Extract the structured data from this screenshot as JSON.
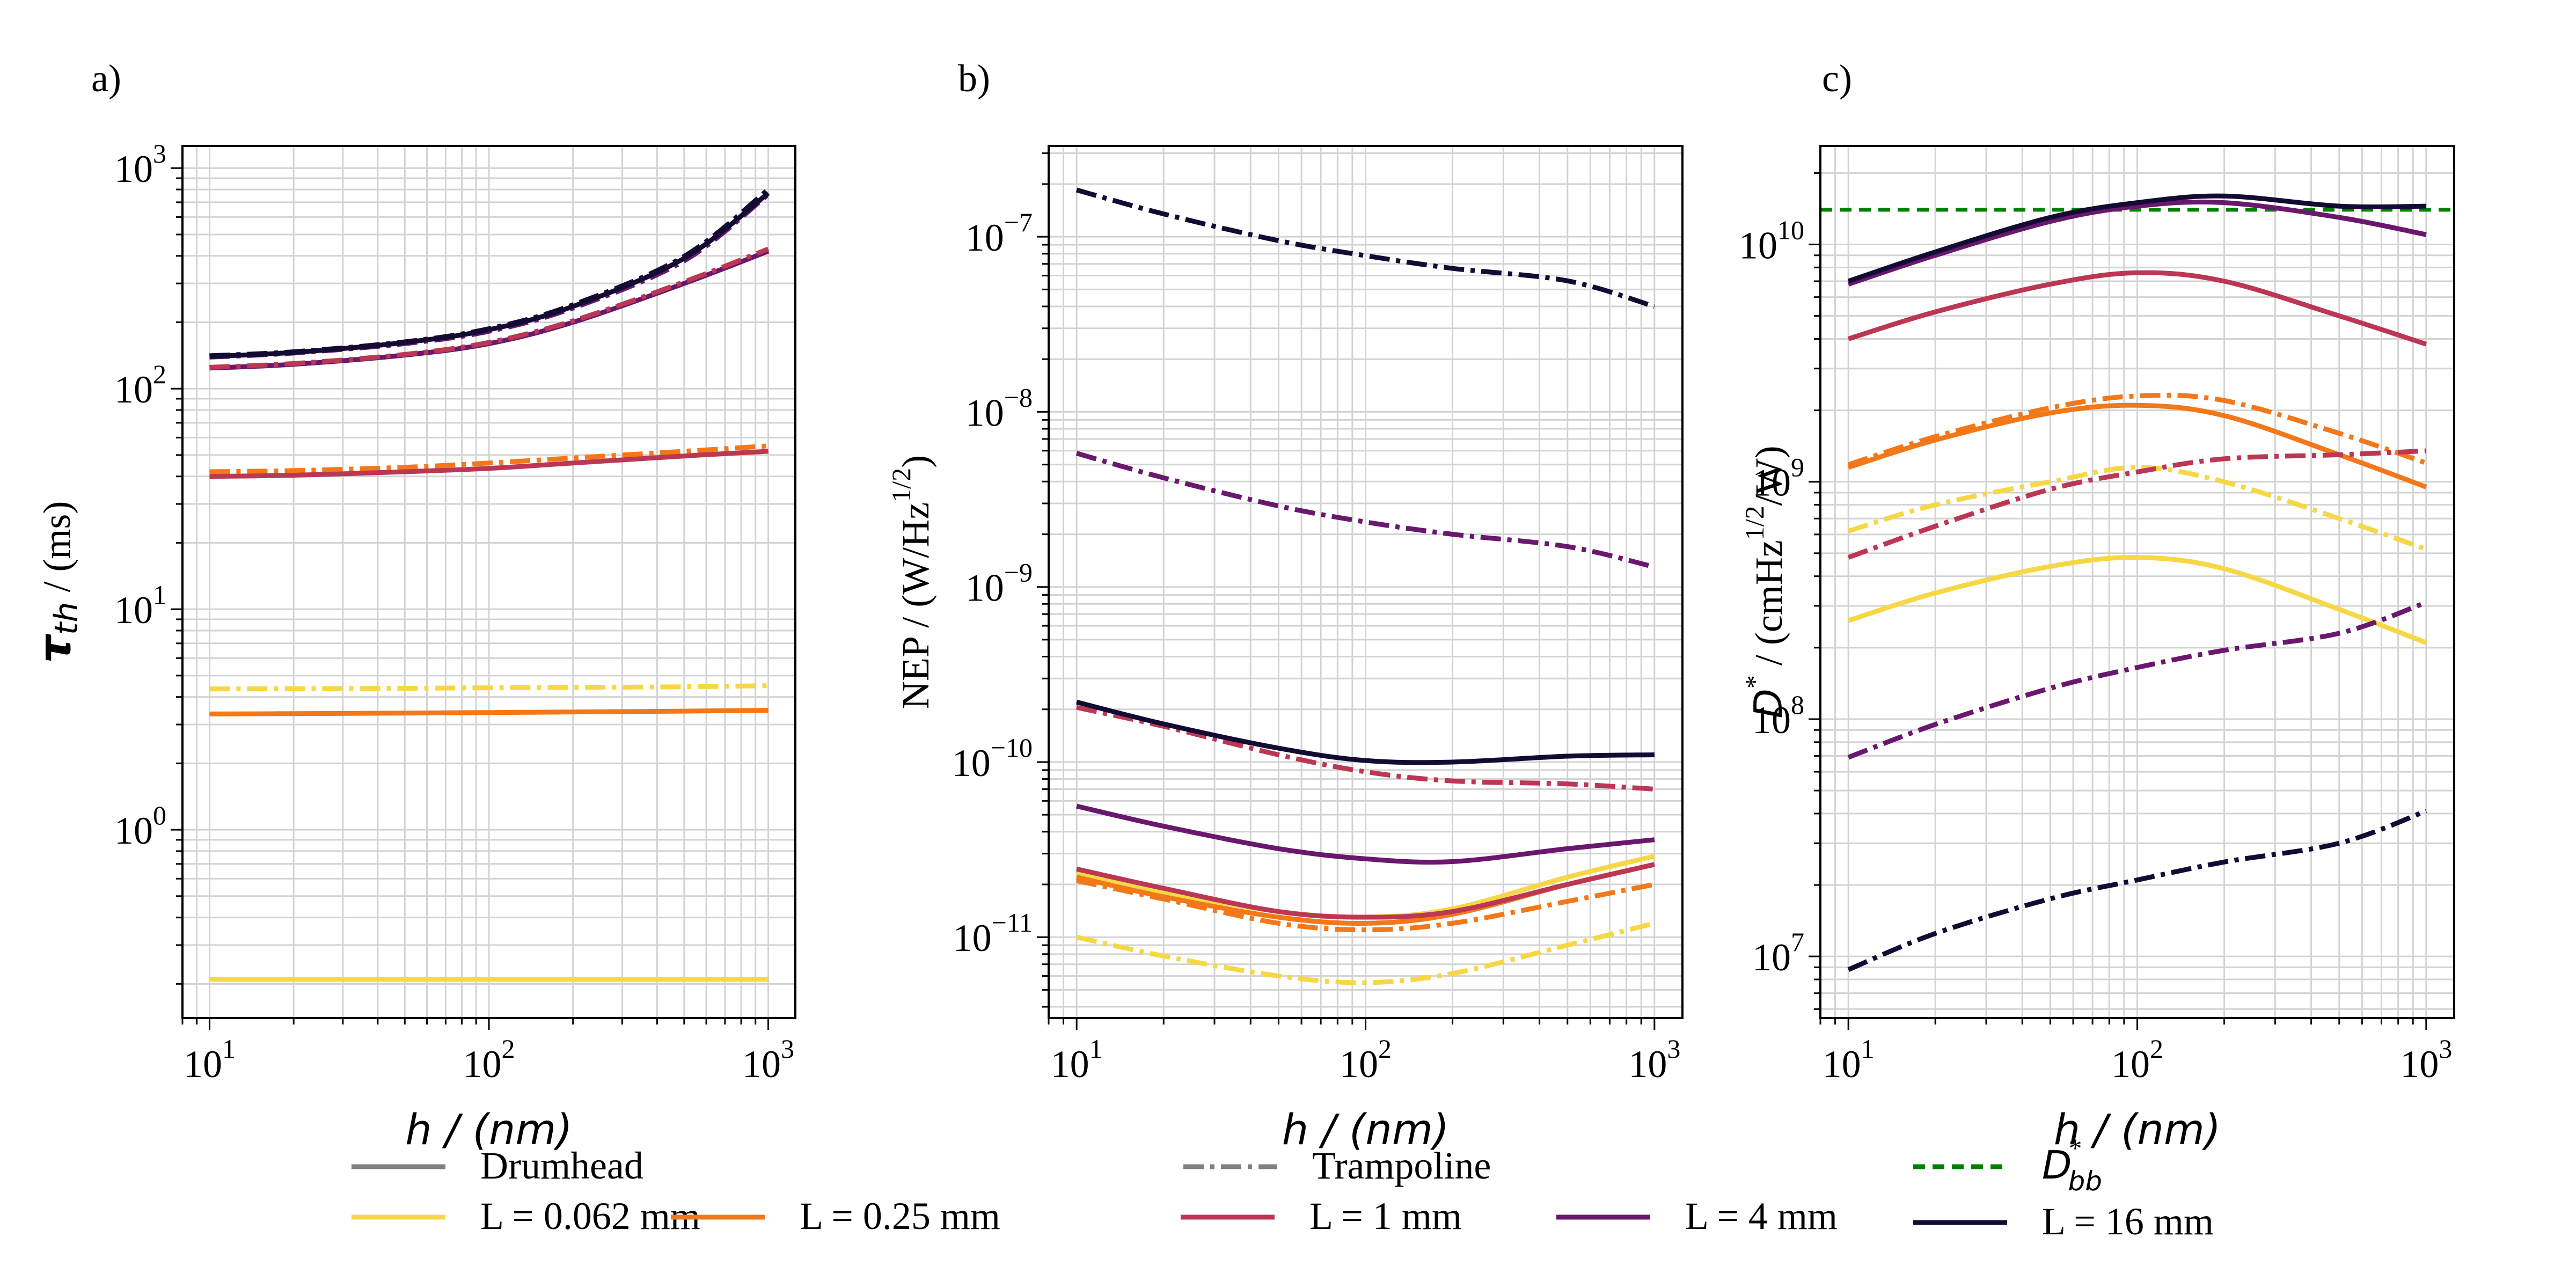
{
  "figure": {
    "legend": {
      "style_entries": [
        {
          "label": "Drumhead",
          "style": "solid",
          "color": "#808080"
        },
        {
          "label": "Trampoline",
          "style": "dashdot",
          "color": "#808080"
        },
        {
          "label": "D*_bb",
          "label_main": "D",
          "label_sup": "*",
          "label_sub": "bb",
          "style": "dashed",
          "color": "#008000"
        }
      ],
      "length_entries": [
        {
          "label": "L = 0.062 mm",
          "color": "#f6d746"
        },
        {
          "label": "L = 0.25 mm",
          "color": "#f37819"
        },
        {
          "label": "L = 1 mm",
          "color": "#bc3754"
        },
        {
          "label": "L = 4 mm",
          "color": "#6a176e"
        },
        {
          "label": "L = 16 mm",
          "color": "#140b34"
        }
      ]
    }
  },
  "chart_data": [
    {
      "panel": "a)",
      "type": "line",
      "xscale": "log",
      "yscale": "log",
      "xlabel": "h / (nm)",
      "ylabel_main": "τ",
      "ylabel_sub": "th",
      "ylabel_rest": " / (ms)",
      "xlim": [
        8,
        1250
      ],
      "ylim": [
        0.14,
        1260
      ],
      "xticks": [
        {
          "v": 10,
          "base": "10",
          "exp": "1"
        },
        {
          "v": 100,
          "base": "10",
          "exp": "2"
        },
        {
          "v": 1000,
          "base": "10",
          "exp": "3"
        }
      ],
      "yticks": [
        {
          "v": 1,
          "base": "10",
          "exp": "0"
        },
        {
          "v": 10,
          "base": "10",
          "exp": "1"
        },
        {
          "v": 100,
          "base": "10",
          "exp": "2"
        },
        {
          "v": 1000,
          "base": "10",
          "exp": "3"
        }
      ],
      "grid": true,
      "x": [
        10,
        20,
        50,
        100,
        200,
        500,
        1000
      ],
      "series": [
        {
          "name": "L = 0.062 mm, Drumhead",
          "color": "#f6d746",
          "style": "solid",
          "values": [
            0.21,
            0.21,
            0.21,
            0.21,
            0.21,
            0.21,
            0.21
          ]
        },
        {
          "name": "L = 0.062 mm, Trampoline",
          "color": "#f6d746",
          "style": "dashdot",
          "values": [
            4.35,
            4.36,
            4.38,
            4.4,
            4.42,
            4.45,
            4.5
          ]
        },
        {
          "name": "L = 0.25 mm, Drumhead",
          "color": "#f37819",
          "style": "solid",
          "values": [
            3.35,
            3.36,
            3.38,
            3.4,
            3.42,
            3.45,
            3.48
          ]
        },
        {
          "name": "L = 0.25 mm, Trampoline",
          "color": "#f37819",
          "style": "dashdot",
          "values": [
            42,
            42.5,
            44,
            46,
            48.5,
            52,
            55
          ]
        },
        {
          "name": "L = 1 mm, Drumhead",
          "color": "#bc3754",
          "style": "solid",
          "values": [
            40,
            40.5,
            42,
            43.5,
            46,
            49.5,
            52
          ]
        },
        {
          "name": "L = 4 mm, Drumhead",
          "color": "#6a176e",
          "style": "solid",
          "values": [
            124,
            129,
            142,
            160,
            200,
            300,
            420
          ]
        },
        {
          "name": "L = 1 mm, Trampoline",
          "color": "#bc3754",
          "style": "dashdot",
          "values": [
            125,
            130,
            143,
            162,
            203,
            305,
            430
          ]
        },
        {
          "name": "L = 4 mm, Trampoline",
          "color": "#6a176e",
          "style": "dashdot",
          "values": [
            139,
            145,
            160,
            182,
            232,
            380,
            760
          ]
        },
        {
          "name": "L = 16 mm, Drumhead",
          "color": "#140b34",
          "style": "solid",
          "values": [
            140,
            146,
            162,
            185,
            236,
            390,
            770
          ]
        },
        {
          "name": "L = 16 mm, Trampoline",
          "color": "#140b34",
          "style": "dashdot",
          "values": [
            141,
            147,
            163,
            187,
            240,
            398,
            800
          ]
        }
      ]
    },
    {
      "panel": "b)",
      "type": "line",
      "xscale": "log",
      "yscale": "log",
      "xlabel": "h / (nm)",
      "ylabel_main": "NEP / (W/Hz",
      "ylabel_sup": "1/2",
      "ylabel_rest": ")",
      "xlim": [
        8,
        1250
      ],
      "ylim": [
        3.45e-12,
        3.3e-07
      ],
      "xticks": [
        {
          "v": 10,
          "base": "10",
          "exp": "1"
        },
        {
          "v": 100,
          "base": "10",
          "exp": "2"
        },
        {
          "v": 1000,
          "base": "10",
          "exp": "3"
        }
      ],
      "yticks": [
        {
          "v": 1e-11,
          "base": "10",
          "exp": "−11"
        },
        {
          "v": 1e-10,
          "base": "10",
          "exp": "−10"
        },
        {
          "v": 1e-09,
          "base": "10",
          "exp": "−9"
        },
        {
          "v": 1e-08,
          "base": "10",
          "exp": "−8"
        },
        {
          "v": 1e-07,
          "base": "10",
          "exp": "−7"
        }
      ],
      "grid": true,
      "x": [
        10,
        20,
        50,
        100,
        200,
        500,
        1000
      ],
      "series": [
        {
          "name": "L = 0.062 mm, Drumhead",
          "color": "#f6d746",
          "style": "solid",
          "values": [
            2.3e-11,
            1.8e-11,
            1.4e-11,
            1.3e-11,
            1.45e-11,
            2.2e-11,
            2.9e-11
          ]
        },
        {
          "name": "L = 0.062 mm, Trampoline",
          "color": "#f6d746",
          "style": "dashdot",
          "values": [
            1e-11,
            7.8e-12,
            6e-12,
            5.5e-12,
            6.2e-12,
            9e-12,
            1.2e-11
          ]
        },
        {
          "name": "L = 0.25 mm, Drumhead",
          "color": "#f37819",
          "style": "solid",
          "values": [
            2.2e-11,
            1.7e-11,
            1.3e-11,
            1.2e-11,
            1.35e-11,
            2e-11,
            2.6e-11
          ]
        },
        {
          "name": "L = 0.25 mm, Trampoline",
          "color": "#f37819",
          "style": "dashdot",
          "values": [
            2.1e-11,
            1.65e-11,
            1.2e-11,
            1.1e-11,
            1.2e-11,
            1.6e-11,
            2e-11
          ]
        },
        {
          "name": "L = 1 mm, Drumhead",
          "color": "#bc3754",
          "style": "solid",
          "values": [
            2.45e-11,
            1.9e-11,
            1.4e-11,
            1.3e-11,
            1.4e-11,
            2e-11,
            2.6e-11
          ]
        },
        {
          "name": "L = 1 mm, Trampoline",
          "color": "#bc3754",
          "style": "dashdot",
          "values": [
            2.05e-10,
            1.6e-10,
            1.1e-10,
            8.8e-11,
            7.8e-11,
            7.5e-11,
            7e-11
          ]
        },
        {
          "name": "L = 4 mm, Drumhead",
          "color": "#6a176e",
          "style": "solid",
          "values": [
            5.6e-11,
            4.3e-11,
            3.2e-11,
            2.8e-11,
            2.7e-11,
            3.2e-11,
            3.6e-11
          ]
        },
        {
          "name": "L = 4 mm, Trampoline",
          "color": "#6a176e",
          "style": "dashdot",
          "values": [
            5.8e-09,
            4.2e-09,
            2.9e-09,
            2.35e-09,
            2e-09,
            1.7e-09,
            1.3e-09
          ]
        },
        {
          "name": "L = 16 mm, Drumhead",
          "color": "#140b34",
          "style": "solid",
          "values": [
            2.2e-10,
            1.65e-10,
            1.2e-10,
            1.02e-10,
            1e-10,
            1.08e-10,
            1.1e-10
          ]
        },
        {
          "name": "L = 16 mm, Trampoline",
          "color": "#140b34",
          "style": "dashdot",
          "values": [
            1.85e-07,
            1.35e-07,
            9.5e-08,
            7.8e-08,
            6.6e-08,
            5.6e-08,
            4e-08
          ]
        }
      ]
    },
    {
      "panel": "c)",
      "type": "line",
      "xscale": "log",
      "yscale": "log",
      "xlabel": "h / (nm)",
      "ylabel_main": "D",
      "ylabel_sup": "*",
      "ylabel_rest": " / (cmHz",
      "ylabel_sup2": "1/2",
      "ylabel_rest2": "/W)",
      "xlim": [
        8,
        1250
      ],
      "ylim": [
        5500000.0,
        26000000000.0
      ],
      "xticks": [
        {
          "v": 10,
          "base": "10",
          "exp": "1"
        },
        {
          "v": 100,
          "base": "10",
          "exp": "2"
        },
        {
          "v": 1000,
          "base": "10",
          "exp": "3"
        }
      ],
      "yticks": [
        {
          "v": 10000000.0,
          "base": "10",
          "exp": "7"
        },
        {
          "v": 100000000.0,
          "base": "10",
          "exp": "8"
        },
        {
          "v": 1000000000.0,
          "base": "10",
          "exp": "9"
        },
        {
          "v": 10000000000.0,
          "base": "10",
          "exp": "10"
        }
      ],
      "grid": true,
      "hline": {
        "name": "D*_bb",
        "value": 14000000000.0,
        "color": "#008000",
        "style": "dashed"
      },
      "x": [
        10,
        20,
        50,
        100,
        200,
        500,
        1000
      ],
      "series": [
        {
          "name": "L = 0.062 mm, Drumhead",
          "color": "#f6d746",
          "style": "solid",
          "values": [
            260000000.0,
            340000000.0,
            440000000.0,
            480000000.0,
            430000000.0,
            290000000.0,
            210000000.0
          ]
        },
        {
          "name": "L = 0.062 mm, Trampoline",
          "color": "#f6d746",
          "style": "dashdot",
          "values": [
            620000000.0,
            800000000.0,
            1000000000.0,
            1150000000.0,
            1000000000.0,
            700000000.0,
            520000000.0
          ]
        },
        {
          "name": "L = 0.25 mm, Drumhead",
          "color": "#f37819",
          "style": "solid",
          "values": [
            1150000000.0,
            1500000000.0,
            1950000000.0,
            2100000000.0,
            1900000000.0,
            1300000000.0,
            950000000.0
          ]
        },
        {
          "name": "L = 0.25 mm, Trampoline",
          "color": "#f37819",
          "style": "dashdot",
          "values": [
            1180000000.0,
            1550000000.0,
            2050000000.0,
            2300000000.0,
            2200000000.0,
            1600000000.0,
            1200000000.0
          ]
        },
        {
          "name": "L = 1 mm, Drumhead",
          "color": "#bc3754",
          "style": "solid",
          "values": [
            4000000000.0,
            5200000000.0,
            6800000000.0,
            7600000000.0,
            7000000000.0,
            5000000000.0,
            3800000000.0
          ]
        },
        {
          "name": "L = 1 mm, Trampoline",
          "color": "#bc3754",
          "style": "dashdot",
          "values": [
            480000000.0,
            650000000.0,
            930000000.0,
            1100000000.0,
            1250000000.0,
            1300000000.0,
            1350000000.0
          ]
        },
        {
          "name": "L = 4 mm, Drumhead",
          "color": "#6a176e",
          "style": "solid",
          "values": [
            6800000000.0,
            9000000000.0,
            12500000000.0,
            14500000000.0,
            15000000000.0,
            13000000000.0,
            11000000000.0
          ]
        },
        {
          "name": "L = 4 mm, Trampoline",
          "color": "#6a176e",
          "style": "dashdot",
          "values": [
            69000000.0,
            95000000.0,
            135000000.0,
            165000000.0,
            195000000.0,
            230000000.0,
            310000000.0
          ]
        },
        {
          "name": "L = 16 mm, Drumhead",
          "color": "#140b34",
          "style": "solid",
          "values": [
            7000000000.0,
            9300000000.0,
            13000000000.0,
            15000000000.0,
            16000000000.0,
            14500000000.0,
            14500000000.0
          ]
        },
        {
          "name": "L = 16 mm, Trampoline",
          "color": "#140b34",
          "style": "dashdot",
          "values": [
            8800000.0,
            12500000.0,
            17500000.0,
            21000000.0,
            25000000.0,
            30000000.0,
            41000000.0
          ]
        }
      ]
    }
  ]
}
